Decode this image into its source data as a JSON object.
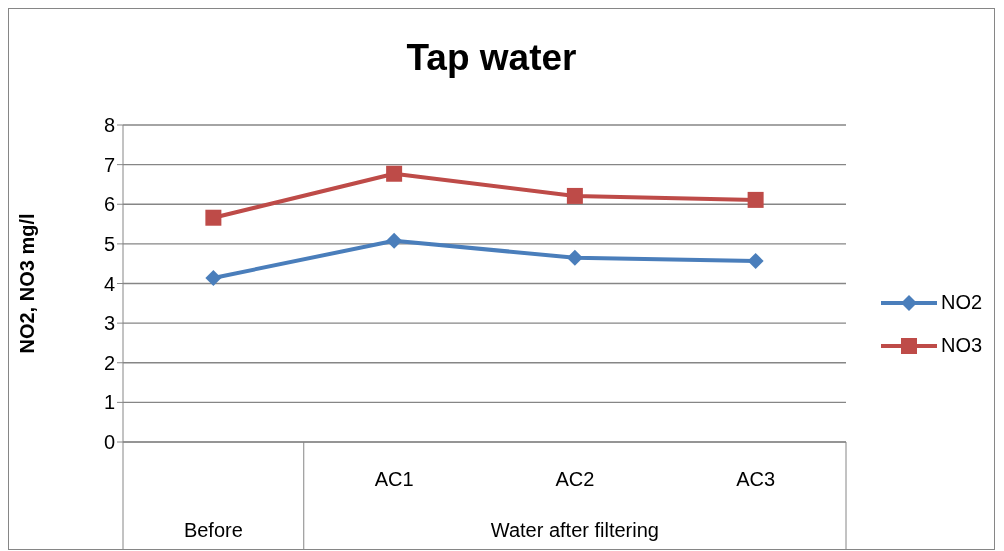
{
  "chart_data": {
    "type": "line",
    "title": "Tap water",
    "ylabel": "NO2, NO3 mg/l",
    "categories": [
      null,
      "AC1",
      "AC2",
      "AC3"
    ],
    "annotations": [
      "Before",
      "Water after filtering"
    ],
    "series": [
      {
        "name": "NO2",
        "color": "#4a7ebb",
        "marker": "diamond",
        "values": [
          4.14,
          5.08,
          4.65,
          4.57
        ]
      },
      {
        "name": "NO3",
        "color": "#be4b48",
        "marker": "square",
        "values": [
          5.66,
          6.77,
          6.21,
          6.11
        ]
      }
    ],
    "ylim": [
      0,
      8
    ],
    "yticks": [
      0,
      1,
      2,
      3,
      4,
      5,
      6,
      7,
      8
    ],
    "grid": "y",
    "legend": "right"
  }
}
